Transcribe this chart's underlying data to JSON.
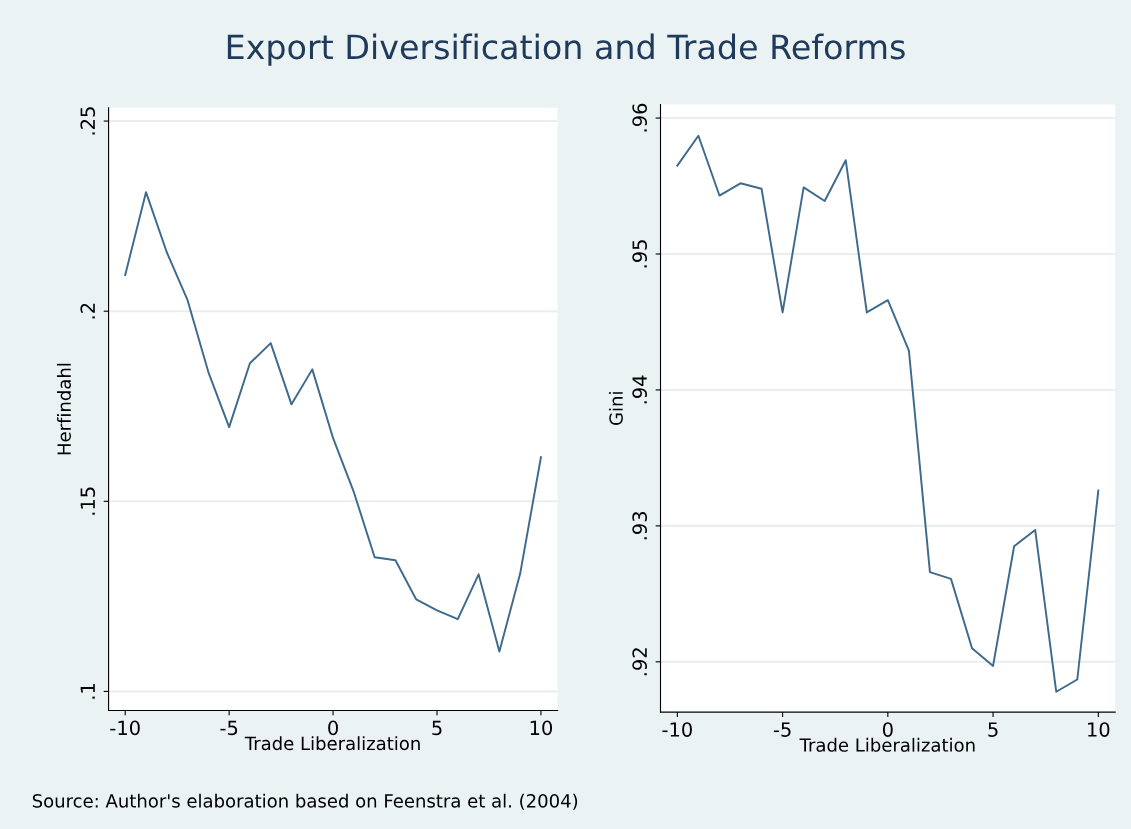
{
  "chart_data": [
    {
      "type": "line",
      "title": "Export Diversification and Trade Reforms",
      "annotations": [
        "Source: Author's elaboration based on Feenstra et al. (2004)"
      ],
      "xlabel": "Trade Liberalization",
      "ylabel": "Herfindahl",
      "x": [
        -10,
        -9,
        -8,
        -7,
        -6,
        -5,
        -4,
        -3,
        -2,
        -1,
        0,
        1,
        2,
        3,
        4,
        5,
        6,
        7,
        8,
        9,
        10
      ],
      "series": [
        {
          "color": "#3f6a8c",
          "values": [
            0.2095,
            0.2313,
            0.2155,
            0.2029,
            0.184,
            0.1695,
            0.1863,
            0.1916,
            0.1755,
            0.1847,
            0.1666,
            0.1524,
            0.1353,
            0.1345,
            0.1242,
            0.1213,
            0.119,
            0.1308,
            0.1105,
            0.131,
            0.1616
          ]
        }
      ],
      "xlim": [
        -10.8,
        10.8
      ],
      "ylim": [
        0.095,
        0.2535
      ],
      "xticks": [
        -10,
        -5,
        0,
        5,
        10
      ],
      "yticks": [
        {
          "value": 0.1,
          "label": ".1"
        },
        {
          "value": 0.15,
          "label": ".15"
        },
        {
          "value": 0.2,
          "label": ".2"
        },
        {
          "value": 0.25,
          "label": ".25"
        }
      ],
      "grid": "y"
    },
    {
      "type": "line",
      "xlabel": "Trade Liberalization",
      "ylabel": "Gini",
      "x": [
        -10,
        -9,
        -8,
        -7,
        -6,
        -5,
        -4,
        -3,
        -2,
        -1,
        0,
        1,
        2,
        3,
        4,
        5,
        6,
        7,
        8,
        9,
        10
      ],
      "series": [
        {
          "color": "#3f6a8c",
          "values": [
            0.9565,
            0.9587,
            0.9543,
            0.9552,
            0.9548,
            0.9457,
            0.9549,
            0.9539,
            0.9569,
            0.9457,
            0.9466,
            0.9429,
            0.9266,
            0.9261,
            0.921,
            0.9197,
            0.9285,
            0.9297,
            0.9178,
            0.9187,
            0.9326
          ]
        }
      ],
      "xlim": [
        -10.8,
        10.8
      ],
      "ylim": [
        0.9163,
        0.961
      ],
      "xticks": [
        -10,
        -5,
        0,
        5,
        10
      ],
      "yticks": [
        {
          "value": 0.92,
          "label": ".92"
        },
        {
          "value": 0.93,
          "label": ".93"
        },
        {
          "value": 0.94,
          "label": ".94"
        },
        {
          "value": 0.95,
          "label": ".95"
        },
        {
          "value": 0.96,
          "label": ".96"
        }
      ],
      "grid": "y"
    }
  ]
}
